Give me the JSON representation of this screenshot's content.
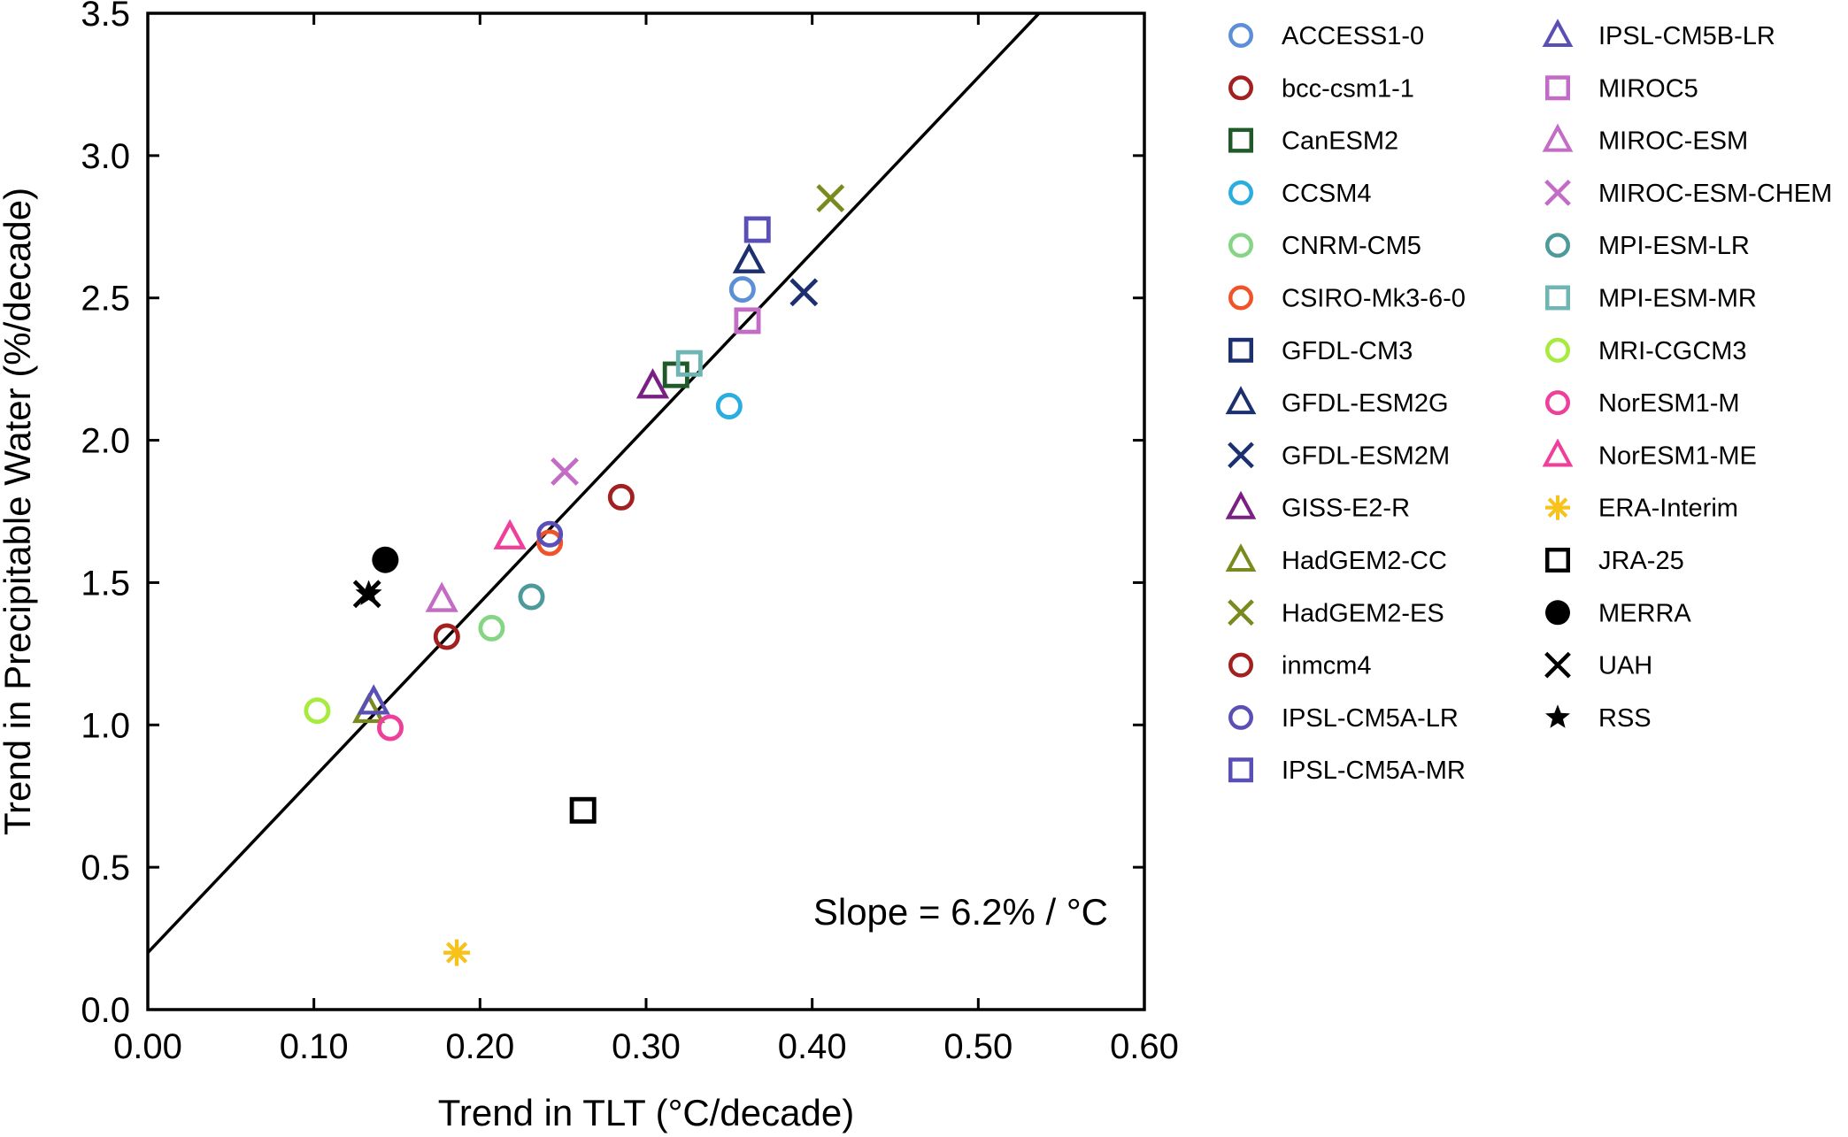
{
  "chart_data": {
    "type": "scatter",
    "xlabel": "Trend in TLT (°C/decade)",
    "ylabel": "Trend in Precipitable Water (%/decade)",
    "xlim": [
      0.0,
      0.6
    ],
    "ylim": [
      0.0,
      3.5
    ],
    "x_ticks": [
      "0.00",
      "0.10",
      "0.20",
      "0.30",
      "0.40",
      "0.50",
      "0.60"
    ],
    "y_ticks": [
      "0.0",
      "0.5",
      "1.0",
      "1.5",
      "2.0",
      "2.5",
      "3.0",
      "3.5"
    ],
    "grid": false,
    "legend_position": "right, two columns",
    "annotation": "Slope = 6.2% / °C",
    "fit_line": {
      "slope_per_decade": 6.15,
      "intercept": 0.2
    },
    "series": [
      {
        "name": "ACCESS1-0",
        "marker": "circle",
        "color": "#5b8fd6",
        "x": 0.358,
        "y": 2.53
      },
      {
        "name": "bcc-csm1-1",
        "marker": "circle",
        "color": "#a32020",
        "x": 0.285,
        "y": 1.8
      },
      {
        "name": "CanESM2",
        "marker": "square",
        "color": "#1f5a28",
        "x": 0.318,
        "y": 2.23
      },
      {
        "name": "CCSM4",
        "marker": "circle",
        "color": "#2aaee0",
        "x": 0.35,
        "y": 2.12
      },
      {
        "name": "CNRM-CM5",
        "marker": "circle",
        "color": "#86d584",
        "x": 0.207,
        "y": 1.34
      },
      {
        "name": "CSIRO-Mk3-6-0",
        "marker": "circle",
        "color": "#f0532a",
        "x": 0.242,
        "y": 1.64
      },
      {
        "name": "GFDL-CM3",
        "marker": "square",
        "color": "#1c2f6e",
        "x": null,
        "y": null
      },
      {
        "name": "GFDL-ESM2G",
        "marker": "triangle",
        "color": "#1c2f6e",
        "x": 0.362,
        "y": 2.63
      },
      {
        "name": "GFDL-ESM2M",
        "marker": "x",
        "color": "#1c2f6e",
        "x": 0.395,
        "y": 2.52
      },
      {
        "name": "GISS-E2-R",
        "marker": "triangle",
        "color": "#7a1f83",
        "x": 0.304,
        "y": 2.19
      },
      {
        "name": "HadGEM2-CC",
        "marker": "triangle",
        "color": "#7a8a1e",
        "x": 0.133,
        "y": 1.05
      },
      {
        "name": "HadGEM2-ES",
        "marker": "x",
        "color": "#7a8a1e",
        "x": 0.411,
        "y": 2.85
      },
      {
        "name": "inmcm4",
        "marker": "circle",
        "color": "#a32020",
        "x": 0.18,
        "y": 1.31
      },
      {
        "name": "IPSL-CM5A-LR",
        "marker": "circle",
        "color": "#5a4fb7",
        "x": 0.242,
        "y": 1.67
      },
      {
        "name": "IPSL-CM5A-MR",
        "marker": "square",
        "color": "#5a4fb7",
        "x": 0.367,
        "y": 2.74
      },
      {
        "name": "IPSL-CM5B-LR",
        "marker": "triangle",
        "color": "#5a4fb7",
        "x": 0.136,
        "y": 1.08
      },
      {
        "name": "MIROC5",
        "marker": "square",
        "color": "#c26cc6",
        "x": 0.361,
        "y": 2.42
      },
      {
        "name": "MIROC-ESM",
        "marker": "triangle",
        "color": "#c26cc6",
        "x": 0.177,
        "y": 1.44
      },
      {
        "name": "MIROC-ESM-CHEM",
        "marker": "x",
        "color": "#c26cc6",
        "x": 0.251,
        "y": 1.89
      },
      {
        "name": "MPI-ESM-LR",
        "marker": "circle",
        "color": "#4c9a99",
        "x": 0.231,
        "y": 1.45
      },
      {
        "name": "MPI-ESM-MR",
        "marker": "square",
        "color": "#6fb5b4",
        "x": 0.326,
        "y": 2.27
      },
      {
        "name": "MRI-CGCM3",
        "marker": "circle",
        "color": "#a6eb3d",
        "x": 0.102,
        "y": 1.05
      },
      {
        "name": "NorESM1-M",
        "marker": "circle",
        "color": "#ee3f9a",
        "x": 0.146,
        "y": 0.99
      },
      {
        "name": "NorESM1-ME",
        "marker": "triangle",
        "color": "#ee3f9a",
        "x": 0.218,
        "y": 1.66
      },
      {
        "name": "ERA-Interim",
        "marker": "asterisk",
        "color": "#f7c21b",
        "x": 0.186,
        "y": 0.2
      },
      {
        "name": "JRA-25",
        "marker": "square",
        "color": "#000000",
        "x": 0.262,
        "y": 0.7
      },
      {
        "name": "MERRA",
        "marker": "filled-circle",
        "color": "#000000",
        "x": 0.143,
        "y": 1.58
      },
      {
        "name": "UAH",
        "marker": "x",
        "color": "#000000",
        "x": 0.132,
        "y": 1.46
      },
      {
        "name": "RSS",
        "marker": "star",
        "color": "#000000",
        "x": 0.133,
        "y": 1.46
      }
    ]
  }
}
